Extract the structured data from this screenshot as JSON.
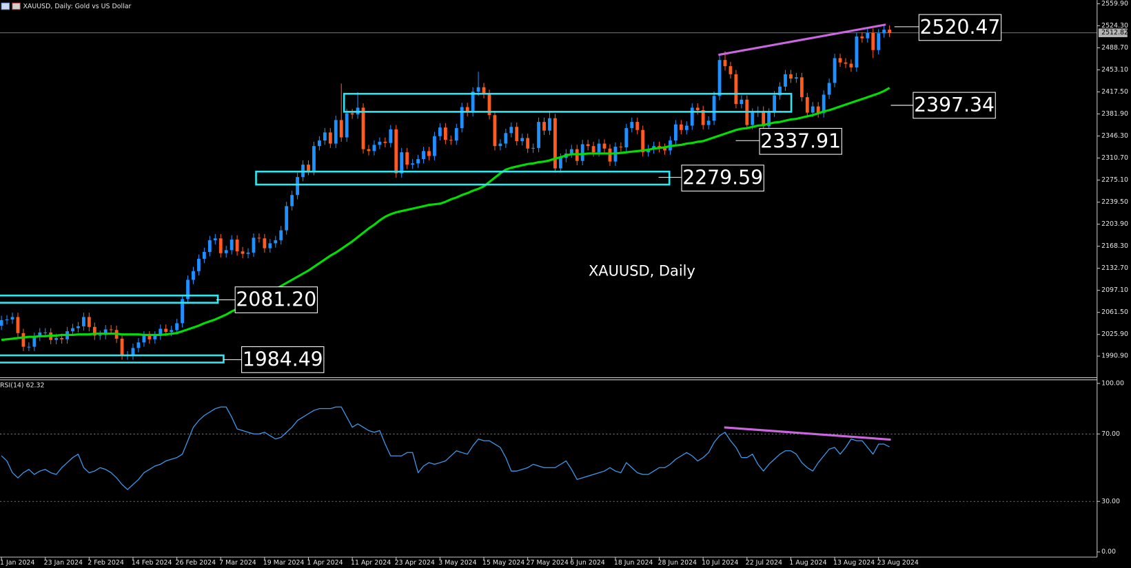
{
  "chart_data": [
    {
      "type": "candlestick",
      "title": "XAUUSD, Daily:  Gold vs US Dollar",
      "watermark": "XAUUSD, Daily",
      "annotations": [
        "2520.47",
        "2397.34",
        "2337.91",
        "2279.59",
        "2081.20",
        "1984.49"
      ],
      "up_color": "#1e90ff",
      "down_color": "#ff5a1f",
      "ylim": [
        1957.2,
        2565.7
      ],
      "yticks": [
        {
          "value": 2559.9,
          "label": "2559.90"
        },
        {
          "value": 2524.3,
          "label": "2524.30"
        },
        {
          "value": 2488.7,
          "label": "2488.70"
        },
        {
          "value": 2453.1,
          "label": "2453.10"
        },
        {
          "value": 2417.5,
          "label": "2417.50"
        },
        {
          "value": 2381.9,
          "label": "2381.90"
        },
        {
          "value": 2346.3,
          "label": "2346.30"
        },
        {
          "value": 2310.7,
          "label": "2310.70"
        },
        {
          "value": 2275.1,
          "label": "2275.10"
        },
        {
          "value": 2239.5,
          "label": "2239.50"
        },
        {
          "value": 2203.9,
          "label": "2203.90"
        },
        {
          "value": 2168.3,
          "label": "2168.30"
        },
        {
          "value": 2132.7,
          "label": "2132.70"
        },
        {
          "value": 2097.1,
          "label": "2097.10"
        },
        {
          "value": 2061.5,
          "label": "2061.50"
        },
        {
          "value": 2025.9,
          "label": "2025.90"
        },
        {
          "value": 1990.9,
          "label": "1990.90"
        }
      ],
      "last_price": {
        "value": 2512.82,
        "label": "2512.82"
      },
      "categories": [
        "1 Jan 2024",
        null,
        null,
        null,
        null,
        null,
        null,
        null,
        "23 Jan 2024",
        null,
        null,
        null,
        null,
        null,
        null,
        null,
        "2 Feb 2024",
        null,
        null,
        null,
        null,
        null,
        null,
        null,
        "14 Feb 2024",
        null,
        null,
        null,
        null,
        null,
        null,
        null,
        "26 Feb 2024",
        null,
        null,
        null,
        null,
        null,
        null,
        null,
        "7 Mar 2024",
        null,
        null,
        null,
        null,
        null,
        null,
        null,
        "19 Mar 2024",
        null,
        null,
        null,
        null,
        null,
        null,
        null,
        "1 Apr 2024",
        null,
        null,
        null,
        null,
        null,
        null,
        null,
        "11 Apr 2024",
        null,
        null,
        null,
        null,
        null,
        null,
        null,
        "23 Apr 2024",
        null,
        null,
        null,
        null,
        null,
        null,
        null,
        "3 May 2024",
        null,
        null,
        null,
        null,
        null,
        null,
        null,
        "15 May 2024",
        null,
        null,
        null,
        null,
        null,
        null,
        null,
        "27 May 2024",
        null,
        null,
        null,
        null,
        null,
        null,
        null,
        "6 Jun 2024",
        null,
        null,
        null,
        null,
        null,
        null,
        null,
        "18 Jun 2024",
        null,
        null,
        null,
        null,
        null,
        null,
        null,
        "28 Jun 2024",
        null,
        null,
        null,
        null,
        null,
        null,
        null,
        "10 Jul 2024",
        null,
        null,
        null,
        null,
        null,
        null,
        null,
        "22 Jul 2024",
        null,
        null,
        null,
        null,
        null,
        null,
        null,
        "1 Aug 2024",
        null,
        null,
        null,
        null,
        null,
        null,
        null,
        "13 Aug 2024",
        null,
        null,
        null,
        null,
        null,
        null,
        null,
        "23 Aug 2024",
        null,
        null
      ],
      "open": [
        2040,
        2049,
        2050,
        2054,
        2028,
        2006,
        2006,
        2022,
        2029,
        2029,
        2017,
        2020,
        2018,
        2031,
        2036,
        2039,
        2054,
        2038,
        2024,
        2025,
        2034,
        2033,
        2019,
        1992,
        1992,
        2004,
        2013,
        2024,
        2018,
        2024,
        2035,
        2030,
        2033,
        2044,
        2083,
        2114,
        2128,
        2148,
        2159,
        2178,
        2181,
        2157,
        2162,
        2179,
        2160,
        2156,
        2158,
        2182,
        2181,
        2165,
        2173,
        2178,
        2194,
        2233,
        2251,
        2280,
        2300,
        2290,
        2330,
        2339,
        2352,
        2334,
        2372,
        2344,
        2383,
        2381,
        2392,
        2325,
        2322,
        2332,
        2337,
        2335,
        2357,
        2286,
        2320,
        2300,
        2302,
        2309,
        2322,
        2314,
        2346,
        2360,
        2340,
        2339,
        2359,
        2393,
        2385,
        2418,
        2425,
        2414,
        2380,
        2330,
        2334,
        2351,
        2361,
        2338,
        2343,
        2326,
        2327,
        2369,
        2355,
        2375,
        2294,
        2311,
        2318,
        2325,
        2306,
        2333,
        2330,
        2320,
        2334,
        2326,
        2305,
        2329,
        2328,
        2359,
        2369,
        2356,
        2320,
        2325,
        2330,
        2327,
        2323,
        2339,
        2365,
        2356,
        2363,
        2392,
        2388,
        2364,
        2371,
        2411,
        2469,
        2459,
        2446,
        2398,
        2405,
        2364,
        2384,
        2387,
        2362,
        2384,
        2412,
        2426,
        2446,
        2439,
        2441,
        2409,
        2384,
        2394,
        2383,
        2413,
        2432,
        2472,
        2465,
        2463,
        2457,
        2507,
        2504,
        2513,
        2485,
        2512,
        2518
      ],
      "high": [
        2056,
        2057,
        2061,
        2061,
        2035,
        2013,
        2029,
        2036,
        2036,
        2036,
        2027,
        2027,
        2038,
        2043,
        2046,
        2061,
        2061,
        2045,
        2032,
        2041,
        2041,
        2040,
        2026,
        1999,
        2011,
        2020,
        2031,
        2031,
        2031,
        2042,
        2042,
        2040,
        2051,
        2090,
        2121,
        2135,
        2155,
        2166,
        2185,
        2188,
        2188,
        2169,
        2186,
        2186,
        2167,
        2165,
        2189,
        2189,
        2188,
        2180,
        2185,
        2201,
        2240,
        2258,
        2287,
        2307,
        2307,
        2337,
        2346,
        2359,
        2359,
        2379,
        2431,
        2390,
        2390,
        2417,
        2399,
        2332,
        2339,
        2344,
        2344,
        2364,
        2364,
        2327,
        2327,
        2309,
        2316,
        2329,
        2329,
        2353,
        2367,
        2367,
        2347,
        2366,
        2400,
        2400,
        2425,
        2450,
        2432,
        2421,
        2387,
        2341,
        2358,
        2368,
        2368,
        2350,
        2350,
        2334,
        2376,
        2376,
        2387,
        2382,
        2318,
        2325,
        2332,
        2332,
        2340,
        2340,
        2337,
        2341,
        2341,
        2333,
        2336,
        2336,
        2366,
        2376,
        2376,
        2363,
        2332,
        2337,
        2337,
        2334,
        2346,
        2372,
        2372,
        2370,
        2399,
        2399,
        2395,
        2378,
        2418,
        2476,
        2483,
        2466,
        2453,
        2412,
        2412,
        2391,
        2394,
        2394,
        2391,
        2419,
        2433,
        2453,
        2453,
        2448,
        2448,
        2416,
        2401,
        2401,
        2420,
        2439,
        2479,
        2479,
        2472,
        2470,
        2514,
        2514,
        2520,
        2520,
        2519,
        2525,
        2525
      ],
      "low": [
        2033,
        2042,
        2043,
        2021,
        1999,
        1999,
        1999,
        2015,
        2022,
        2010,
        2010,
        2011,
        2011,
        2024,
        2029,
        2032,
        2031,
        2017,
        2017,
        2018,
        2026,
        2012,
        1985,
        1985,
        1985,
        1997,
        2006,
        2011,
        2011,
        2017,
        2023,
        2023,
        2026,
        2037,
        2076,
        2107,
        2121,
        2141,
        2152,
        2171,
        2150,
        2150,
        2155,
        2153,
        2149,
        2149,
        2151,
        2174,
        2158,
        2158,
        2166,
        2171,
        2187,
        2226,
        2244,
        2273,
        2283,
        2283,
        2323,
        2332,
        2327,
        2327,
        2337,
        2337,
        2374,
        2374,
        2318,
        2315,
        2315,
        2325,
        2328,
        2328,
        2279,
        2279,
        2293,
        2293,
        2295,
        2302,
        2307,
        2307,
        2339,
        2333,
        2332,
        2332,
        2352,
        2378,
        2378,
        2411,
        2407,
        2373,
        2323,
        2323,
        2327,
        2344,
        2331,
        2331,
        2319,
        2319,
        2320,
        2348,
        2348,
        2287,
        2287,
        2304,
        2311,
        2299,
        2299,
        2323,
        2313,
        2313,
        2319,
        2298,
        2298,
        2321,
        2321,
        2352,
        2349,
        2313,
        2313,
        2318,
        2320,
        2316,
        2316,
        2332,
        2349,
        2349,
        2356,
        2381,
        2357,
        2357,
        2364,
        2404,
        2452,
        2439,
        2391,
        2391,
        2357,
        2357,
        2377,
        2355,
        2355,
        2377,
        2405,
        2419,
        2432,
        2432,
        2402,
        2377,
        2377,
        2376,
        2376,
        2406,
        2425,
        2458,
        2456,
        2450,
        2450,
        2497,
        2497,
        2472,
        2478,
        2505,
        2506
      ],
      "close": [
        2049,
        2050,
        2054,
        2028,
        2006,
        2006,
        2022,
        2029,
        2029,
        2017,
        2020,
        2018,
        2031,
        2036,
        2039,
        2054,
        2038,
        2024,
        2025,
        2034,
        2033,
        2019,
        1992,
        1992,
        2004,
        2013,
        2024,
        2018,
        2024,
        2035,
        2030,
        2033,
        2044,
        2083,
        2114,
        2128,
        2148,
        2159,
        2178,
        2181,
        2157,
        2162,
        2179,
        2160,
        2156,
        2158,
        2182,
        2181,
        2165,
        2173,
        2178,
        2194,
        2233,
        2251,
        2280,
        2300,
        2290,
        2330,
        2339,
        2352,
        2334,
        2372,
        2344,
        2383,
        2381,
        2392,
        2325,
        2322,
        2332,
        2337,
        2335,
        2357,
        2286,
        2320,
        2300,
        2302,
        2309,
        2322,
        2314,
        2346,
        2360,
        2340,
        2339,
        2359,
        2393,
        2385,
        2418,
        2425,
        2414,
        2380,
        2330,
        2334,
        2351,
        2361,
        2338,
        2343,
        2326,
        2327,
        2369,
        2355,
        2375,
        2294,
        2311,
        2318,
        2325,
        2306,
        2333,
        2330,
        2320,
        2334,
        2326,
        2305,
        2329,
        2328,
        2359,
        2369,
        2356,
        2320,
        2325,
        2330,
        2327,
        2323,
        2339,
        2365,
        2356,
        2363,
        2392,
        2388,
        2364,
        2371,
        2411,
        2469,
        2459,
        2446,
        2398,
        2405,
        2364,
        2384,
        2387,
        2362,
        2384,
        2412,
        2426,
        2446,
        2439,
        2441,
        2409,
        2384,
        2394,
        2383,
        2413,
        2432,
        2472,
        2465,
        2463,
        2457,
        2507,
        2504,
        2513,
        2485,
        2512,
        2518,
        2513
      ],
      "series": [
        {
          "color": "#00e000",
          "values": [
            2017,
            2018,
            2019,
            2020,
            2021,
            2022,
            2022,
            2023,
            2023,
            2024,
            2024,
            2025,
            2025,
            2025,
            2026,
            2026,
            2026,
            2027,
            2027,
            2027,
            2027,
            2027,
            2026,
            2026,
            2026,
            2026,
            2025,
            2025,
            2025,
            2025,
            2026,
            2027,
            2028,
            2031,
            2034,
            2037,
            2040,
            2044,
            2047,
            2050,
            2054,
            2058,
            2063,
            2067,
            2071,
            2076,
            2080,
            2085,
            2089,
            2094,
            2099,
            2104,
            2109,
            2114,
            2119,
            2124,
            2129,
            2135,
            2141,
            2147,
            2153,
            2158,
            2164,
            2170,
            2176,
            2183,
            2190,
            2197,
            2203,
            2210,
            2216,
            2220,
            2223,
            2225,
            2227,
            2229,
            2231,
            2233,
            2235,
            2236,
            2237,
            2240,
            2244,
            2247,
            2251,
            2254,
            2258,
            2261,
            2265,
            2272,
            2279,
            2286,
            2292,
            2295,
            2297,
            2299,
            2301,
            2302,
            2304,
            2305,
            2307,
            2310,
            2312,
            2315,
            2317,
            2317,
            2317,
            2318,
            2318,
            2318,
            2318,
            2318,
            2318,
            2319,
            2320,
            2321,
            2322,
            2323,
            2324,
            2326,
            2327,
            2328,
            2330,
            2331,
            2332,
            2334,
            2335,
            2337,
            2338,
            2341,
            2344,
            2347,
            2350,
            2353,
            2356,
            2358,
            2359,
            2361,
            2363,
            2364,
            2366,
            2368,
            2369,
            2371,
            2373,
            2374,
            2376,
            2378,
            2380,
            2383,
            2386,
            2388,
            2391,
            2394,
            2397,
            2400,
            2403,
            2406,
            2409,
            2412,
            2415,
            2419,
            2424
          ]
        }
      ]
    },
    {
      "type": "line",
      "title": "RSI(14) 62.32",
      "ylim": [
        -2.6,
        102.1
      ],
      "yticks": [
        {
          "value": 100,
          "label": "100.00"
        },
        {
          "value": 70,
          "label": "70.00"
        },
        {
          "value": 30,
          "label": "30.00"
        },
        {
          "value": 0,
          "label": "0.00"
        }
      ],
      "series": [
        {
          "color": "#3d9df0",
          "values": [
            57,
            54,
            47,
            44,
            47,
            49,
            46,
            48,
            49,
            47,
            46,
            50,
            53,
            56,
            58,
            50,
            47,
            48,
            50,
            49,
            47,
            44,
            40,
            37,
            40,
            43,
            47,
            49,
            51,
            52,
            54,
            55,
            56,
            58,
            66,
            74,
            78,
            81,
            83,
            85,
            86,
            86,
            80,
            73,
            72,
            71,
            70,
            70,
            71,
            69,
            67,
            68,
            71,
            74,
            78,
            80,
            82,
            84,
            85,
            85,
            85,
            86,
            86,
            80,
            74,
            76,
            74,
            72,
            71,
            72,
            64,
            57,
            57,
            57,
            59,
            59,
            47,
            51,
            53,
            52,
            53,
            54,
            57,
            60,
            59,
            58,
            63,
            67,
            66,
            66,
            64,
            62,
            56,
            48,
            48,
            49,
            50,
            52,
            51,
            50,
            50,
            50,
            52,
            54,
            49,
            43,
            44,
            45,
            46,
            47,
            48,
            50,
            48,
            47,
            53,
            50,
            47,
            46,
            46,
            48,
            50,
            50,
            52,
            55,
            57,
            59,
            57,
            54,
            56,
            59,
            65,
            69,
            71,
            66,
            62,
            56,
            56,
            58,
            52,
            48,
            52,
            55,
            58,
            60,
            60,
            58,
            53,
            50,
            48,
            53,
            57,
            61,
            62,
            58,
            62,
            67,
            66,
            66,
            62,
            58,
            64,
            64,
            62.32
          ]
        }
      ]
    }
  ]
}
